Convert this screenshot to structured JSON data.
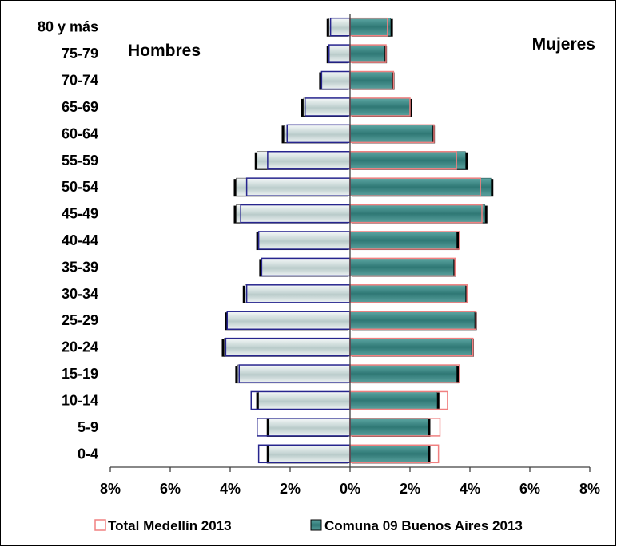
{
  "chart_data": {
    "type": "bar",
    "orientation": "horizontal-population-pyramid",
    "categories": [
      "0-4",
      "5-9",
      "10-14",
      "15-19",
      "20-24",
      "25-29",
      "30-34",
      "35-39",
      "40-44",
      "45-49",
      "50-54",
      "55-59",
      "60-64",
      "65-69",
      "70-74",
      "75-79",
      "80 y más"
    ],
    "side_titles": {
      "left": "Hombres",
      "right": "Mujeres"
    },
    "xlim": [
      -8,
      8
    ],
    "xticks": [
      -8,
      -6,
      -4,
      -2,
      0,
      2,
      4,
      6,
      8
    ],
    "xtick_labels": [
      "8%",
      "6%",
      "4%",
      "2%",
      "0%",
      "2%",
      "4%",
      "6%",
      "8%"
    ],
    "series": [
      {
        "name": "Comuna 09 Buenos Aires 2013",
        "style": "filled",
        "color_left": "#dde7e6",
        "color_right": "#3e8c89",
        "hombres": [
          2.7,
          2.7,
          3.05,
          3.75,
          4.2,
          4.1,
          3.5,
          2.95,
          3.05,
          3.8,
          3.8,
          3.1,
          2.2,
          1.55,
          0.95,
          0.7,
          0.7
        ],
        "mujeres": [
          2.6,
          2.6,
          2.9,
          3.55,
          4.05,
          4.15,
          3.85,
          3.45,
          3.55,
          4.5,
          4.7,
          3.85,
          2.75,
          2.0,
          1.4,
          1.15,
          1.35
        ]
      },
      {
        "name": "Total Medellín 2013",
        "style": "outline",
        "color_left": "#27258e",
        "color_right": "#f08080",
        "hombres": [
          3.05,
          3.1,
          3.3,
          3.7,
          4.15,
          4.1,
          3.45,
          2.95,
          3.05,
          3.65,
          3.45,
          2.75,
          2.1,
          1.5,
          0.95,
          0.7,
          0.65
        ],
        "mujeres": [
          2.95,
          3.0,
          3.25,
          3.65,
          4.1,
          4.2,
          3.9,
          3.5,
          3.65,
          4.4,
          4.35,
          3.55,
          2.8,
          2.0,
          1.45,
          1.2,
          1.25
        ]
      }
    ],
    "legend": {
      "position": "bottom",
      "items": [
        "Total Medellín 2013",
        "Comuna 09 Buenos Aires 2013"
      ]
    },
    "grid": false
  }
}
